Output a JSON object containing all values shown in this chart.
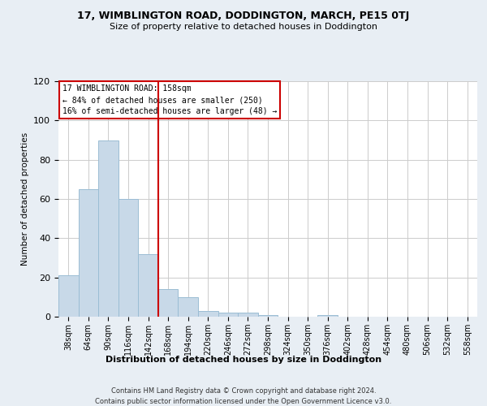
{
  "title": "17, WIMBLINGTON ROAD, DODDINGTON, MARCH, PE15 0TJ",
  "subtitle": "Size of property relative to detached houses in Doddington",
  "xlabel": "Distribution of detached houses by size in Doddington",
  "ylabel": "Number of detached properties",
  "bar_color": "#c8d9e8",
  "bar_edge_color": "#9bbdd4",
  "bin_labels": [
    "38sqm",
    "64sqm",
    "90sqm",
    "116sqm",
    "142sqm",
    "168sqm",
    "194sqm",
    "220sqm",
    "246sqm",
    "272sqm",
    "298sqm",
    "324sqm",
    "350sqm",
    "376sqm",
    "402sqm",
    "428sqm",
    "454sqm",
    "480sqm",
    "506sqm",
    "532sqm",
    "558sqm"
  ],
  "bar_values": [
    21,
    65,
    90,
    60,
    32,
    14,
    10,
    3,
    2,
    2,
    1,
    0,
    0,
    1,
    0,
    0,
    0,
    0,
    0,
    0,
    0
  ],
  "ylim": [
    0,
    120
  ],
  "yticks": [
    0,
    20,
    40,
    60,
    80,
    100,
    120
  ],
  "vline_color": "#cc0000",
  "annotation_title": "17 WIMBLINGTON ROAD: 158sqm",
  "annotation_line1": "← 84% of detached houses are smaller (250)",
  "annotation_line2": "16% of semi-detached houses are larger (48) →",
  "footer1": "Contains HM Land Registry data © Crown copyright and database right 2024.",
  "footer2": "Contains public sector information licensed under the Open Government Licence v3.0.",
  "background_color": "#e8eef4",
  "plot_bg_color": "#ffffff"
}
